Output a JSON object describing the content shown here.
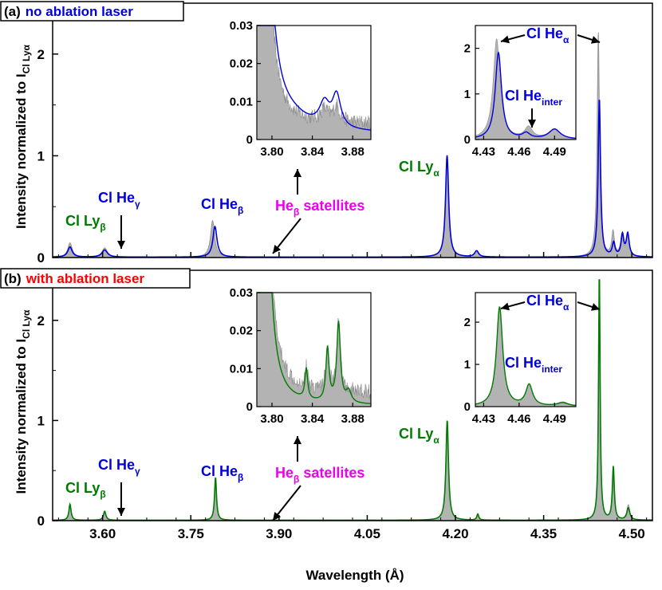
{
  "chart_data": {
    "type": "line",
    "xlabel": "Wavelength (Å)",
    "ylabel_prefix": "Intensity normalized to I",
    "ylabel_sub": "Cl Lyα",
    "xlim": [
      3.515,
      4.535
    ],
    "x_ticks": [
      "3.60",
      "3.75",
      "3.90",
      "4.05",
      "4.20",
      "4.35",
      "4.50"
    ],
    "x_tick_values": [
      3.6,
      3.75,
      3.9,
      4.05,
      4.2,
      4.35,
      4.5
    ],
    "colors": {
      "grey": "#b3b3b3",
      "grey_edge": "#8c8c8c",
      "blue": "#0000dd",
      "green": "#007a00",
      "magenta": "#ee00ee",
      "red": "#ff0000"
    },
    "panels": [
      {
        "id": "a",
        "label_prefix": "(a)",
        "label_text": "no ablation laser",
        "label_color": "#0000dd",
        "line_color": "#0000dd",
        "series_names": [
          "reference spectrum (grey fill)",
          "no ablation laser"
        ],
        "ylim": [
          0,
          2.5
        ],
        "y_ticks": [
          "0",
          "1",
          "2"
        ],
        "y_tick_values": [
          0,
          1,
          2
        ],
        "peaks_fill": [
          {
            "name": "Cl Lyβ",
            "x": 3.5445,
            "h": 0.14,
            "w": 0.0045
          },
          {
            "name": "Cl Heγ",
            "x": 3.6035,
            "h": 0.09,
            "w": 0.0055
          },
          {
            "name": "Cl Heβ",
            "x": 3.787,
            "h": 0.36,
            "w": 0.0042
          },
          {
            "name": "Cl Lyα",
            "x": 4.186,
            "h": 1.0,
            "w": 0.0032
          },
          {
            "name": "sat1",
            "x": 4.236,
            "h": 0.06,
            "w": 0.004
          },
          {
            "name": "Cl Heα",
            "x": 4.443,
            "h": 2.22,
            "w": 0.0024
          },
          {
            "name": "Cl He inter",
            "x": 4.468,
            "h": 0.24,
            "w": 0.0028
          },
          {
            "name": "sat2",
            "x": 4.483,
            "h": 0.2,
            "w": 0.0028
          },
          {
            "name": "sat3",
            "x": 4.493,
            "h": 0.22,
            "w": 0.003
          }
        ],
        "peaks_line": [
          {
            "x": 3.5445,
            "h": 0.1,
            "w": 0.0045
          },
          {
            "x": 3.6035,
            "h": 0.07,
            "w": 0.0055
          },
          {
            "x": 3.791,
            "h": 0.3,
            "w": 0.0042
          },
          {
            "x": 4.1858,
            "h": 1.0,
            "w": 0.0032
          },
          {
            "x": 4.236,
            "h": 0.06,
            "w": 0.004
          },
          {
            "x": 4.4447,
            "h": 1.56,
            "w": 0.0024
          },
          {
            "x": 4.469,
            "h": 0.13,
            "w": 0.0028
          },
          {
            "x": 4.484,
            "h": 0.21,
            "w": 0.0028
          },
          {
            "x": 4.493,
            "h": 0.22,
            "w": 0.003
          }
        ],
        "inset_left": {
          "xlim": [
            3.785,
            3.898
          ],
          "ylim": [
            0,
            0.03
          ],
          "x_ticks": [
            "3.80",
            "3.84",
            "3.88"
          ],
          "x_tick_values": [
            3.8,
            3.84,
            3.88
          ],
          "y_ticks": [
            "0",
            "0.01",
            "0.02",
            "0.03"
          ],
          "y_tick_values": [
            0,
            0.01,
            0.02,
            0.03
          ]
        },
        "inset_right": {
          "xlim": [
            4.423,
            4.508
          ],
          "ylim": [
            0,
            2.5
          ],
          "x_ticks": [
            "4.43",
            "4.46",
            "4.49"
          ],
          "x_tick_values": [
            4.43,
            4.46,
            4.49
          ],
          "y_ticks": [
            "0",
            "1",
            "2"
          ],
          "y_tick_values": [
            0,
            1,
            2
          ]
        }
      },
      {
        "id": "b",
        "label_prefix": "(b)",
        "label_text": "with ablation laser",
        "label_color": "#ff0000",
        "line_color": "#007a00",
        "series_names": [
          "reference spectrum (grey fill)",
          "with ablation laser"
        ],
        "ylim": [
          0,
          2.5
        ],
        "y_ticks": [
          "0",
          "1",
          "2"
        ],
        "y_tick_values": [
          0,
          1,
          2
        ],
        "peaks_fill": [
          {
            "name": "Cl Lyβ",
            "x": 3.5445,
            "h": 0.16,
            "w": 0.0022
          },
          {
            "name": "Cl Heγ",
            "x": 3.6035,
            "h": 0.09,
            "w": 0.0025
          },
          {
            "name": "Cl Heβ",
            "x": 3.792,
            "h": 0.43,
            "w": 0.002
          },
          {
            "name": "Cl Lyα",
            "x": 4.186,
            "h": 1.0,
            "w": 0.0026
          },
          {
            "name": "sat1",
            "x": 4.238,
            "h": 0.06,
            "w": 0.002
          },
          {
            "name": "Cl Heα",
            "x": 4.4447,
            "h": 2.48,
            "w": 0.0016
          },
          {
            "name": "Cl He inter",
            "x": 4.4685,
            "h": 0.53,
            "w": 0.002
          },
          {
            "name": "sat3",
            "x": 4.494,
            "h": 0.15,
            "w": 0.003
          }
        ],
        "peaks_line": [
          {
            "x": 3.5445,
            "h": 0.16,
            "w": 0.0022
          },
          {
            "x": 3.6035,
            "h": 0.09,
            "w": 0.0025
          },
          {
            "x": 3.792,
            "h": 0.43,
            "w": 0.002
          },
          {
            "x": 4.186,
            "h": 1.0,
            "w": 0.0026
          },
          {
            "x": 4.238,
            "h": 0.06,
            "w": 0.002
          },
          {
            "x": 4.4447,
            "h": 2.48,
            "w": 0.0016
          },
          {
            "x": 4.4685,
            "h": 0.53,
            "w": 0.002
          },
          {
            "x": 4.494,
            "h": 0.12,
            "w": 0.003
          }
        ],
        "inset_left": {
          "xlim": [
            3.785,
            3.898
          ],
          "ylim": [
            0,
            0.03
          ],
          "x_ticks": [
            "3.80",
            "3.84",
            "3.88"
          ],
          "x_tick_values": [
            3.8,
            3.84,
            3.88
          ],
          "y_ticks": [
            "0",
            "0.01",
            "0.02",
            "0.03"
          ],
          "y_tick_values": [
            0,
            0.01,
            0.02,
            0.03
          ]
        },
        "inset_right": {
          "xlim": [
            4.423,
            4.508
          ],
          "ylim": [
            0,
            2.7
          ],
          "x_ticks": [
            "4.43",
            "4.46",
            "4.49"
          ],
          "x_tick_values": [
            4.43,
            4.46,
            4.49
          ],
          "y_ticks": [
            "0",
            "1",
            "2"
          ],
          "y_tick_values": [
            0,
            1,
            2
          ]
        }
      }
    ],
    "annotations": {
      "ly_beta": {
        "main": "Cl Ly",
        "sub": "β"
      },
      "he_gamma": {
        "main": "Cl He",
        "sub": "γ"
      },
      "he_beta": {
        "main": "Cl He",
        "sub": "β"
      },
      "satellites": {
        "main": "He",
        "sub": "β",
        "tail": " satellites"
      },
      "ly_alpha": {
        "main": "Cl Ly",
        "sub": "α"
      },
      "he_alpha": {
        "main": "Cl He",
        "sub": "α"
      },
      "he_inter": {
        "main": "Cl He",
        "sub": "inter"
      }
    }
  }
}
